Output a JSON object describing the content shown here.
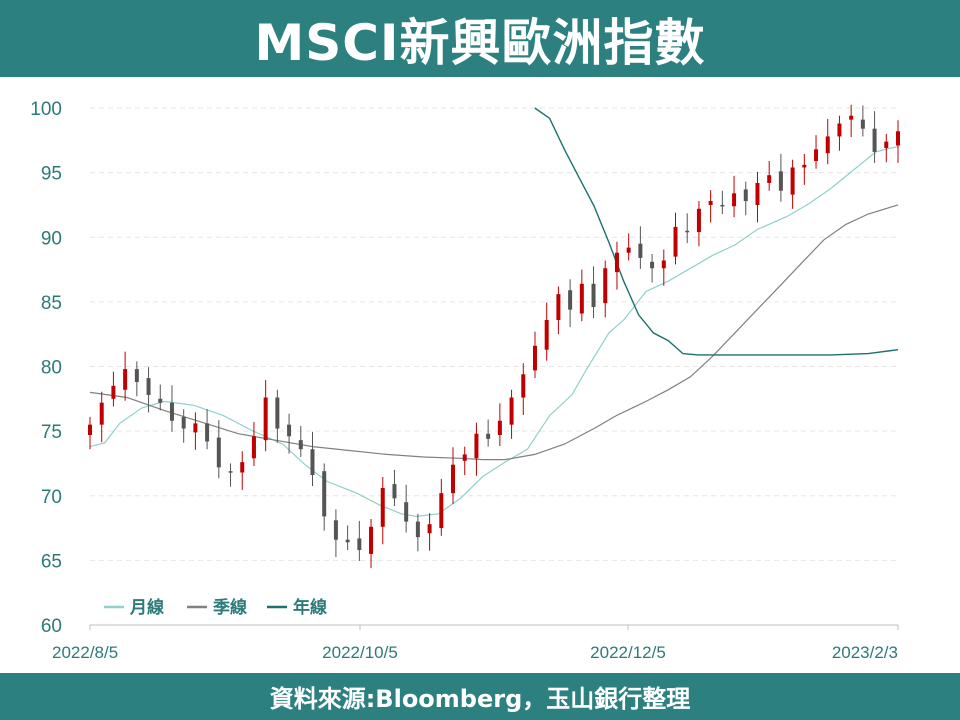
{
  "title": "MSCI新興歐洲指數",
  "footer": "資料來源:Bloomberg，玉山銀行整理",
  "colors": {
    "brand": "#2d8080",
    "up": "#c00000",
    "down": "#555555",
    "month_line": "#8fd0cc",
    "quarter_line": "#808080",
    "year_line": "#1f6f6f",
    "text": "#2d7a7a"
  },
  "chart_data": {
    "type": "candlestick",
    "title": "MSCI新興歐洲指數",
    "ylim": [
      60,
      100
    ],
    "y_ticks": [
      60,
      65,
      70,
      75,
      80,
      85,
      90,
      95,
      100
    ],
    "x_ticks": [
      "2022/8/5",
      "2022/10/5",
      "2022/12/5",
      "2023/2/3"
    ],
    "grid": "horizontal dashed",
    "legend_position": "bottom-left",
    "legend": [
      "月線",
      "季線",
      "年線"
    ],
    "candles_close": [
      75.5,
      77.2,
      78.5,
      79.8,
      78.8,
      77.8,
      77.2,
      75.8,
      75.2,
      75.6,
      74.2,
      72.2,
      71.8,
      72.6,
      74.6,
      77.6,
      75.2,
      74.6,
      73.6,
      71.6,
      68.4,
      66.6,
      66.4,
      65.8,
      67.6,
      70.6,
      69.8,
      68.0,
      66.8,
      67.8,
      70.2,
      72.4,
      73.2,
      74.8,
      74.4,
      75.8,
      77.6,
      79.4,
      81.6,
      83.6,
      85.6,
      84.4,
      86.4,
      84.6,
      87.6,
      88.8,
      89.2,
      88.4,
      87.6,
      88.2,
      90.8,
      90.4,
      92.2,
      92.8,
      92.4,
      93.4,
      92.8,
      94.2,
      94.8,
      93.6,
      95.4,
      95.6,
      96.8,
      97.8,
      98.8,
      99.4,
      98.4,
      96.6,
      97.4,
      98.2
    ],
    "series": [
      {
        "name": "月線",
        "points": [
          [
            0,
            73.8
          ],
          [
            2,
            74.1
          ],
          [
            4,
            75.6
          ],
          [
            7,
            76.8
          ],
          [
            10,
            77.3
          ],
          [
            14,
            77.0
          ],
          [
            18,
            76.2
          ],
          [
            22,
            75.0
          ],
          [
            26,
            74.0
          ],
          [
            29,
            72.4
          ],
          [
            32,
            71.1
          ],
          [
            36,
            70.2
          ],
          [
            39,
            69.3
          ],
          [
            42,
            68.6
          ],
          [
            44,
            68.4
          ],
          [
            47,
            68.6
          ],
          [
            50,
            69.8
          ],
          [
            53,
            71.5
          ],
          [
            56,
            72.6
          ],
          [
            59,
            73.6
          ],
          [
            62,
            76.2
          ],
          [
            65,
            77.8
          ],
          [
            67,
            79.8
          ],
          [
            70,
            82.6
          ],
          [
            72,
            83.6
          ],
          [
            75,
            85.8
          ],
          [
            78,
            86.6
          ],
          [
            81,
            87.6
          ],
          [
            84,
            88.6
          ],
          [
            87,
            89.4
          ],
          [
            90,
            90.6
          ],
          [
            94,
            91.6
          ],
          [
            97,
            92.6
          ],
          [
            100,
            93.8
          ],
          [
            103,
            95.2
          ],
          [
            106,
            96.6
          ],
          [
            108,
            96.9
          ],
          [
            109,
            97.0
          ]
        ]
      },
      {
        "name": "季線",
        "points": [
          [
            0,
            78.0
          ],
          [
            5,
            77.6
          ],
          [
            10,
            76.6
          ],
          [
            15,
            75.7
          ],
          [
            20,
            74.8
          ],
          [
            25,
            74.3
          ],
          [
            30,
            73.8
          ],
          [
            35,
            73.5
          ],
          [
            40,
            73.2
          ],
          [
            45,
            73.0
          ],
          [
            50,
            72.9
          ],
          [
            53,
            72.8
          ],
          [
            56,
            72.8
          ],
          [
            60,
            73.2
          ],
          [
            64,
            74.0
          ],
          [
            68,
            75.2
          ],
          [
            71,
            76.2
          ],
          [
            75,
            77.3
          ],
          [
            78,
            78.2
          ],
          [
            81,
            79.2
          ],
          [
            84,
            80.8
          ],
          [
            87,
            82.6
          ],
          [
            90,
            84.4
          ],
          [
            93,
            86.2
          ],
          [
            96,
            88.0
          ],
          [
            99,
            89.8
          ],
          [
            102,
            91.0
          ],
          [
            105,
            91.8
          ],
          [
            109,
            92.5
          ]
        ]
      },
      {
        "name": "年線",
        "points": [
          [
            60,
            100.0
          ],
          [
            62,
            99.2
          ],
          [
            64,
            96.8
          ],
          [
            66,
            94.6
          ],
          [
            68,
            92.4
          ],
          [
            70,
            89.6
          ],
          [
            72,
            86.6
          ],
          [
            74,
            84.0
          ],
          [
            76,
            82.6
          ],
          [
            78,
            82.0
          ],
          [
            80,
            81.0
          ],
          [
            82,
            80.9
          ],
          [
            90,
            80.9
          ],
          [
            100,
            80.9
          ],
          [
            105,
            81.0
          ],
          [
            109,
            81.3
          ]
        ]
      }
    ]
  }
}
